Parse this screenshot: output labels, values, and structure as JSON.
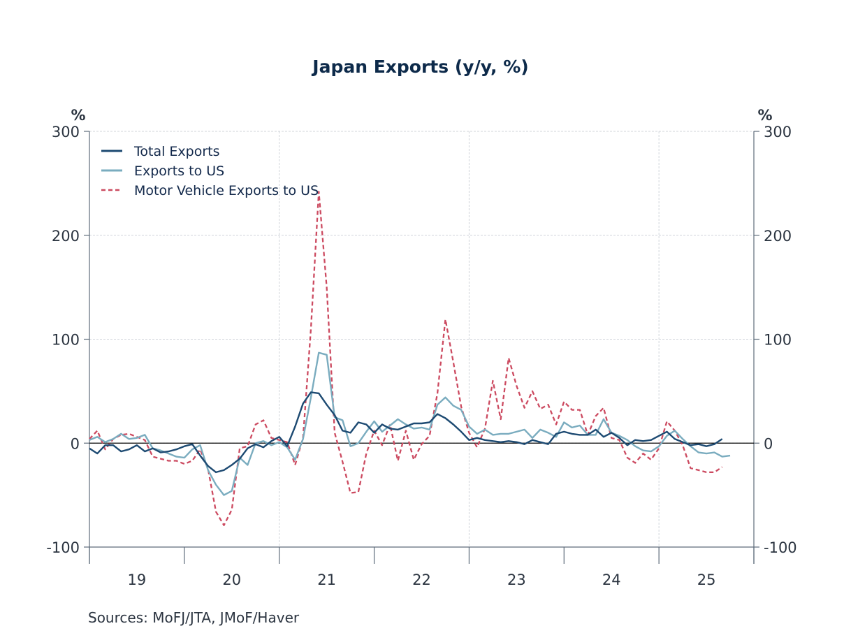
{
  "chart_data": {
    "type": "line",
    "title": "Japan Exports (y/y, %)",
    "xlabel": "",
    "ylabel_left": "%",
    "ylabel_right": "%",
    "ylim": [
      -100,
      300
    ],
    "yticks": [
      300,
      200,
      100,
      0,
      -100
    ],
    "ytick_labels": [
      "300",
      "200",
      "100",
      "0",
      "-100"
    ],
    "x_categories": [
      "19",
      "20",
      "21",
      "22",
      "23",
      "24",
      "25"
    ],
    "x_start": "2019-01",
    "x_end": "2025-12",
    "frequency": "monthly",
    "grid": true,
    "zero_line": true,
    "legend_position": "top-left",
    "source": "Sources:  MoFJ/JTA, JMoF/Haver",
    "colors": {
      "total": "#1d4a72",
      "us": "#7aacbf",
      "motor": "#cc4a60",
      "axis": "#5d6b7a",
      "grid": "#d0d4da",
      "zero": "#000000",
      "title": "#0d2a4a"
    },
    "series": [
      {
        "name": "Total Exports",
        "key": "total",
        "style": "solid",
        "values": [
          -5,
          -10,
          -2,
          -2,
          -8,
          -6,
          -2,
          -8,
          -5,
          -9,
          -8,
          -6,
          -3,
          -1,
          -12,
          -22,
          -28,
          -26,
          -21,
          -15,
          -5,
          -1,
          -4,
          2,
          6,
          -3,
          16,
          38,
          49,
          48,
          37,
          27,
          12,
          10,
          20,
          18,
          10,
          18,
          14,
          13,
          16,
          19,
          19,
          20,
          28,
          24,
          18,
          11,
          3,
          5,
          3,
          2,
          1,
          2,
          1,
          -1,
          3,
          1,
          -1,
          9,
          11,
          9,
          8,
          8,
          13,
          6,
          10,
          5,
          -2,
          3,
          2,
          3,
          7,
          11,
          4,
          1,
          -2,
          -1,
          -3,
          -1,
          4
        ]
      },
      {
        "name": "Exports to US",
        "key": "us",
        "style": "solid",
        "values": [
          3,
          6,
          1,
          4,
          9,
          4,
          5,
          8,
          -5,
          -7,
          -10,
          -13,
          -14,
          -6,
          -2,
          -26,
          -40,
          -50,
          -46,
          -14,
          -21,
          0,
          2,
          -2,
          1,
          -4,
          -16,
          4,
          44,
          87,
          85,
          25,
          22,
          -3,
          0,
          11,
          21,
          11,
          17,
          23,
          18,
          14,
          15,
          13,
          37,
          44,
          36,
          32,
          16,
          9,
          13,
          8,
          9,
          9,
          11,
          13,
          5,
          13,
          10,
          6,
          20,
          15,
          17,
          8,
          8,
          23,
          10,
          7,
          3,
          -3,
          -7,
          -8,
          -3,
          7,
          12,
          4,
          -3,
          -9,
          -10,
          -9,
          -13,
          -12
        ]
      },
      {
        "name": "Motor Vehicle Exports to US",
        "key": "motor",
        "style": "dashed",
        "values": [
          4,
          12,
          -6,
          4,
          8,
          9,
          6,
          3,
          -13,
          -15,
          -17,
          -17,
          -20,
          -17,
          -6,
          -25,
          -66,
          -79,
          -64,
          -5,
          -3,
          18,
          22,
          5,
          3,
          1,
          -21,
          5,
          110,
          242,
          150,
          10,
          -18,
          -48,
          -47,
          -10,
          12,
          -2,
          18,
          -17,
          12,
          -16,
          -1,
          7,
          48,
          119,
          78,
          35,
          10,
          -4,
          14,
          60,
          23,
          82,
          55,
          34,
          50,
          33,
          37,
          18,
          40,
          32,
          32,
          8,
          26,
          34,
          5,
          3,
          -14,
          -19,
          -10,
          -16,
          -5,
          21,
          12,
          -2,
          -24,
          -26,
          -28,
          -28,
          -23
        ]
      }
    ]
  }
}
